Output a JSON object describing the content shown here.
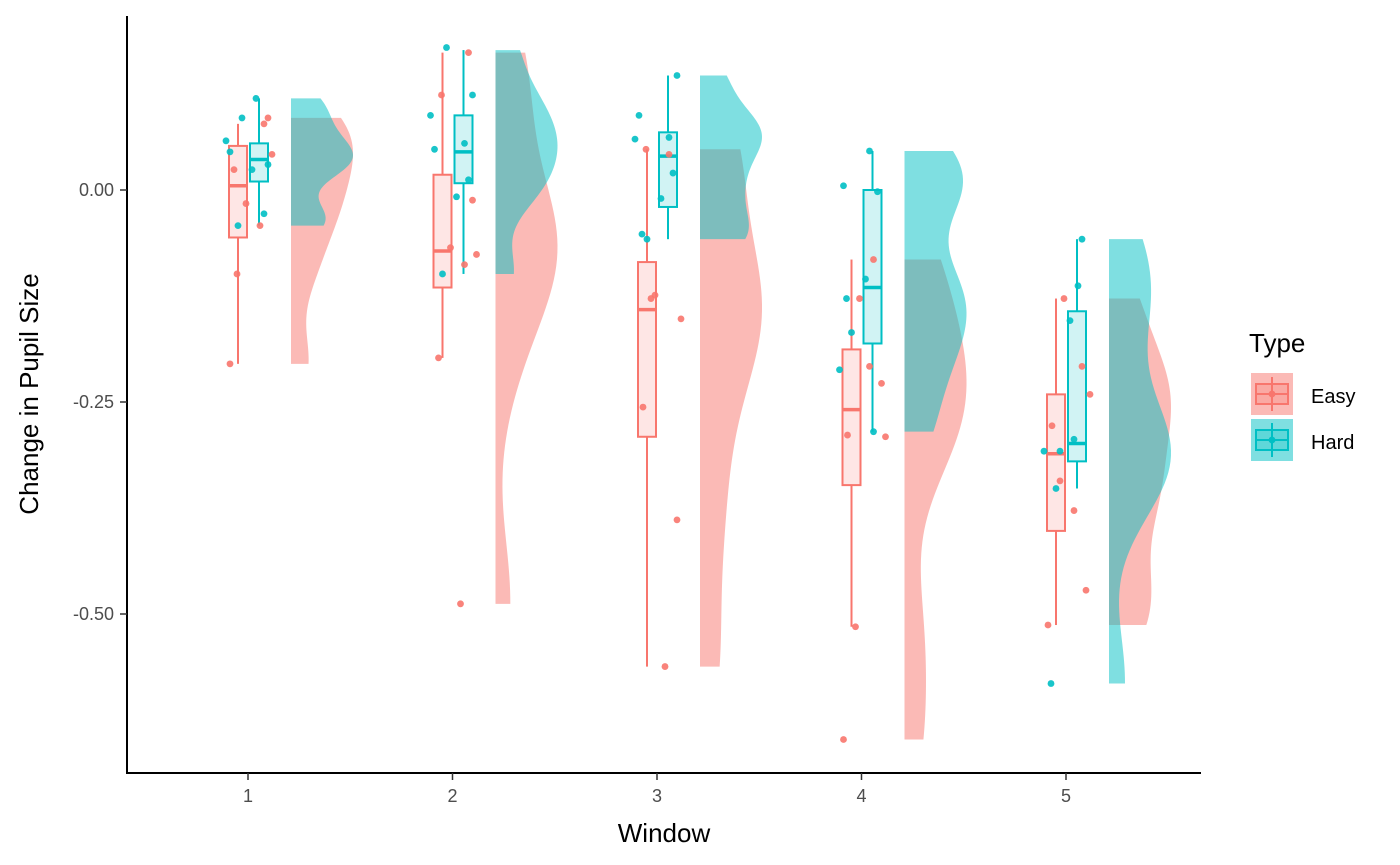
{
  "chart_data": {
    "type": "raincloud",
    "xlabel": "Window",
    "ylabel": "Change in Pupil Size",
    "ylim": [
      -0.68,
      0.2
    ],
    "y_ticks": [
      0.0,
      -0.25,
      -0.5
    ],
    "y_tick_labels": [
      "0.00",
      "-0.25",
      "-0.50"
    ],
    "categories": [
      "1",
      "2",
      "3",
      "4",
      "5"
    ],
    "grid": false,
    "legend": {
      "title": "Type",
      "placement": "right",
      "entries": [
        "Easy",
        "Hard"
      ]
    },
    "series": [
      {
        "name": "Easy",
        "color": "#F8766D",
        "boxes": [
          {
            "min": -0.205,
            "q1": -0.056,
            "median": 0.005,
            "q3": 0.052,
            "max": 0.078
          },
          {
            "min": -0.198,
            "q1": -0.115,
            "median": -0.072,
            "q3": 0.018,
            "max": 0.162
          },
          {
            "min": -0.562,
            "q1": -0.291,
            "median": -0.141,
            "q3": -0.085,
            "max": 0.048
          },
          {
            "min": -0.515,
            "q1": -0.348,
            "median": -0.259,
            "q3": -0.188,
            "max": -0.082
          },
          {
            "min": -0.513,
            "q1": -0.402,
            "median": -0.311,
            "q3": -0.241,
            "max": -0.128
          }
        ],
        "points": [
          [
            -0.205,
            0.078,
            -0.099,
            -0.042,
            -0.016,
            0.042,
            0.024,
            0.085
          ],
          [
            0.162,
            0.112,
            -0.088,
            -0.068,
            -0.076,
            -0.198,
            -0.012,
            -0.488
          ],
          [
            0.048,
            0.042,
            -0.124,
            -0.152,
            -0.256,
            -0.389,
            -0.562,
            -0.128
          ],
          [
            -0.082,
            -0.128,
            -0.291,
            -0.289,
            -0.228,
            -0.208,
            -0.515,
            -0.648
          ],
          [
            -0.128,
            -0.241,
            -0.278,
            -0.472,
            -0.378,
            -0.343,
            -0.513,
            -0.208
          ]
        ],
        "density_range": [
          [
            -0.205,
            0.085
          ],
          [
            -0.488,
            0.162
          ],
          [
            -0.562,
            0.048
          ],
          [
            -0.648,
            -0.082
          ],
          [
            -0.513,
            -0.128
          ]
        ]
      },
      {
        "name": "Hard",
        "color": "#00BFC4",
        "boxes": [
          {
            "min": -0.042,
            "q1": 0.01,
            "median": 0.036,
            "q3": 0.055,
            "max": 0.108
          },
          {
            "min": -0.099,
            "q1": 0.008,
            "median": 0.045,
            "q3": 0.088,
            "max": 0.165
          },
          {
            "min": -0.058,
            "q1": -0.02,
            "median": 0.04,
            "q3": 0.068,
            "max": 0.135
          },
          {
            "min": -0.285,
            "q1": -0.181,
            "median": -0.115,
            "q3": 0.0,
            "max": 0.046
          },
          {
            "min": -0.352,
            "q1": -0.32,
            "median": -0.299,
            "q3": -0.143,
            "max": -0.058
          }
        ],
        "points": [
          [
            0.108,
            0.085,
            0.03,
            0.045,
            -0.028,
            0.024,
            -0.042,
            0.058
          ],
          [
            0.168,
            0.112,
            0.048,
            0.012,
            -0.008,
            -0.099,
            0.088,
            0.055
          ],
          [
            0.135,
            0.088,
            0.02,
            -0.01,
            -0.058,
            0.06,
            0.062,
            -0.052
          ],
          [
            0.005,
            -0.002,
            -0.105,
            -0.168,
            -0.212,
            -0.285,
            -0.128,
            0.046
          ],
          [
            -0.058,
            -0.154,
            -0.352,
            -0.308,
            -0.113,
            -0.582,
            -0.294,
            -0.308
          ]
        ],
        "density_range": [
          [
            -0.042,
            0.108
          ],
          [
            -0.099,
            0.165
          ],
          [
            -0.058,
            0.135
          ],
          [
            -0.285,
            0.046
          ],
          [
            -0.582,
            -0.058
          ]
        ]
      }
    ]
  }
}
